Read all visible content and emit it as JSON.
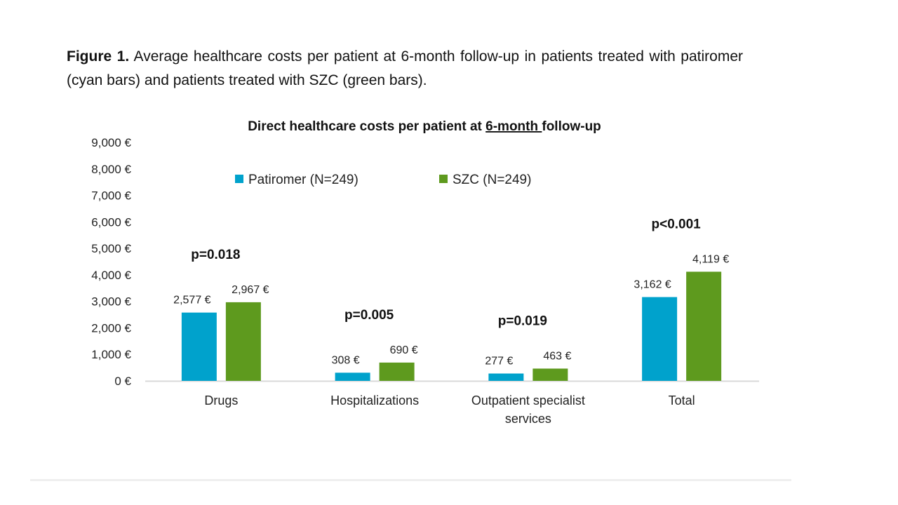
{
  "caption": {
    "label": "Figure 1.",
    "text": " Average healthcare costs per patient at 6-month follow-up in patients treated with patiromer (cyan bars) and patients treated with SZC (green bars)."
  },
  "colors": {
    "patiromer": "#00A2CC",
    "szc": "#5E9A1E",
    "axis": "#d9d9d9"
  },
  "chart_data": {
    "type": "bar",
    "title_parts": [
      "Direct healthcare costs per patient at ",
      "6-month ",
      "follow-up"
    ],
    "title": "Direct healthcare costs per patient at 6-month follow-up",
    "xlabel": "",
    "ylabel": "",
    "ylim": [
      0,
      9000
    ],
    "y_ticks": [
      0,
      1000,
      2000,
      3000,
      4000,
      5000,
      6000,
      7000,
      8000,
      9000
    ],
    "y_tick_labels": [
      "0 €",
      "1,000 €",
      "2,000 €",
      "3,000 €",
      "4,000 €",
      "5,000 €",
      "6,000 €",
      "7,000 €",
      "8,000 €",
      "9,000 €"
    ],
    "grid": false,
    "legend_position": "top",
    "categories": [
      [
        "Drugs"
      ],
      [
        "Hospitalizations"
      ],
      [
        "Outpatient specialist",
        "services"
      ],
      [
        "Total"
      ]
    ],
    "series": [
      {
        "name": "Patiromer (N=249)",
        "values": [
          2577,
          308,
          277,
          3162
        ],
        "labels": [
          "2,577 €",
          "308 €",
          "277 €",
          "3,162 €"
        ]
      },
      {
        "name": "SZC (N=249)",
        "values": [
          2967,
          690,
          463,
          4119
        ],
        "labels": [
          "2,967 €",
          "690 €",
          "463 €",
          "4,119 €"
        ]
      }
    ],
    "annotations": [
      "p=0.018",
      "p=0.005",
      "p=0.019",
      "p<0.001"
    ]
  }
}
